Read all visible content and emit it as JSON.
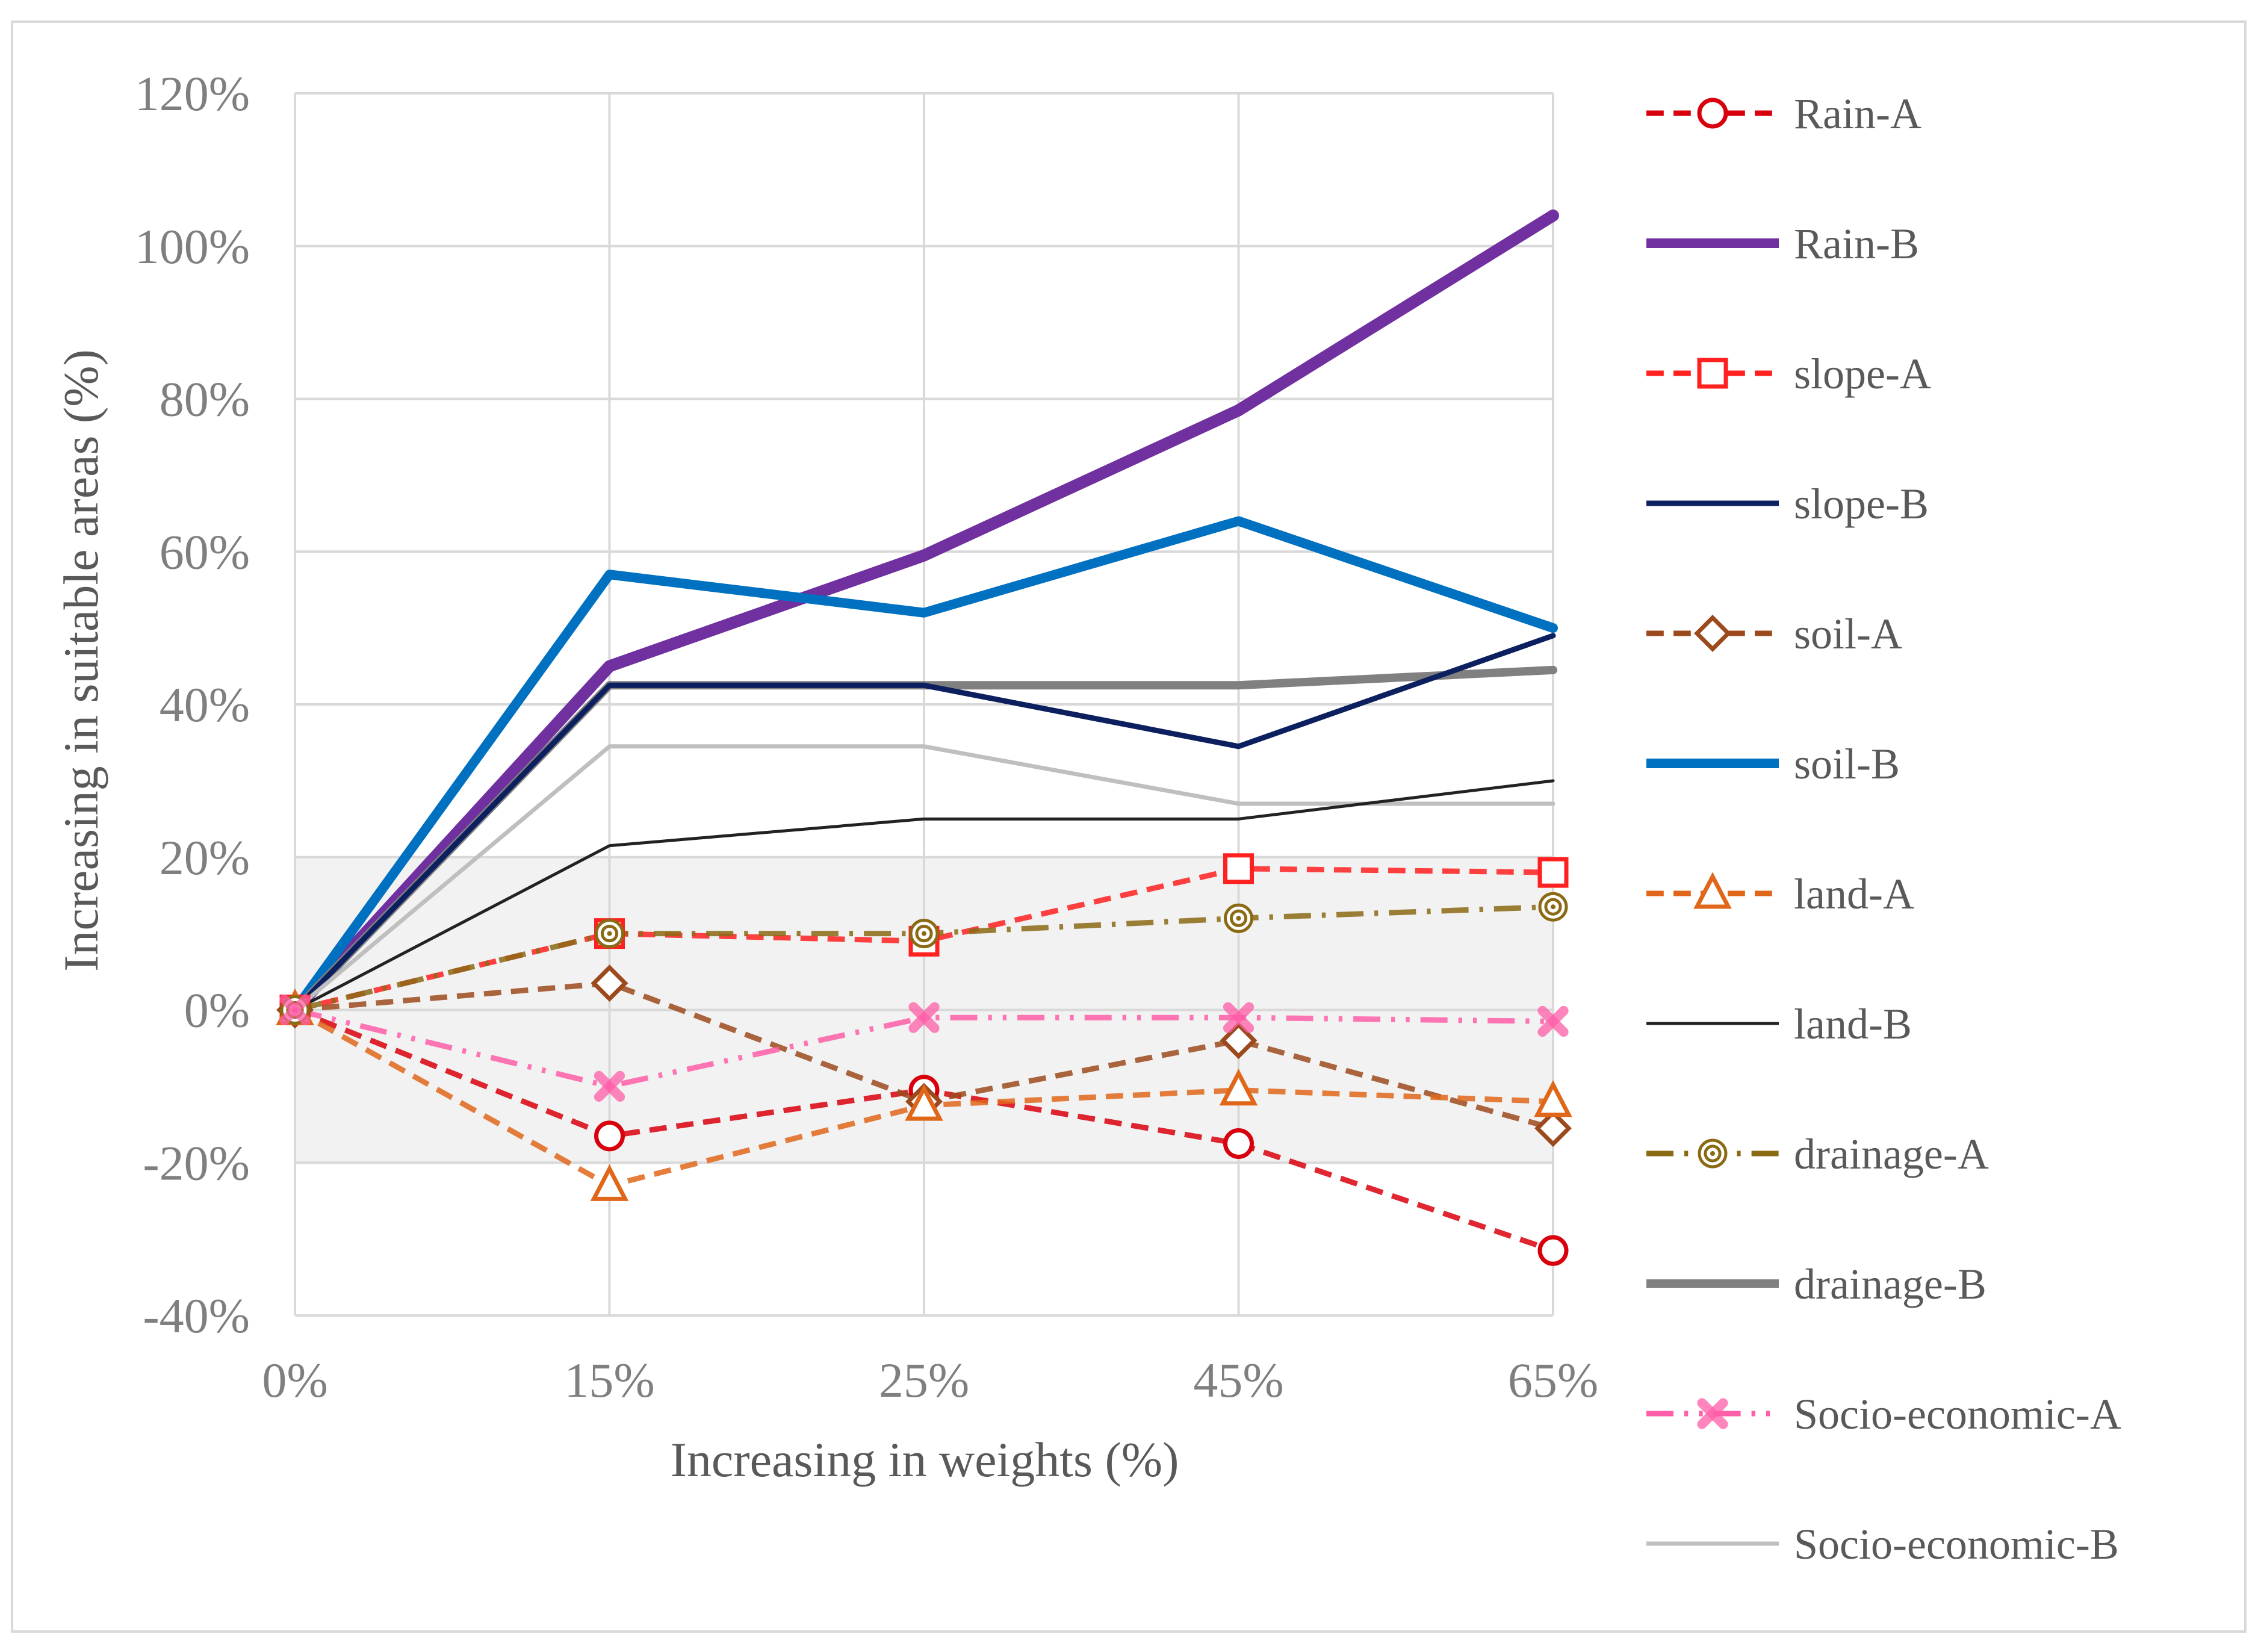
{
  "chart_data": {
    "type": "line",
    "title": "",
    "xlabel": "Increasing in weights (%)",
    "ylabel": "Increasing in suitable areas (%)",
    "categories": [
      "0%",
      "15%",
      "25%",
      "45%",
      "65%"
    ],
    "y_ticks": [
      "-40%",
      "-20%",
      "0%",
      "20%",
      "40%",
      "60%",
      "80%",
      "100%",
      "120%"
    ],
    "ylim": [
      -40,
      120
    ],
    "grid": true,
    "legend_position": "right",
    "shaded_band": {
      "from": -20,
      "to": 20,
      "color": "#f2f2f2"
    },
    "series": [
      {
        "name": "Rain-A",
        "values": [
          0,
          -16.5,
          -10.5,
          -17.5,
          -31.5
        ],
        "color": "#d9000d",
        "dash": "dash",
        "width": 9,
        "marker": "circle"
      },
      {
        "name": "Rain-B",
        "values": [
          0,
          45,
          59.5,
          78.5,
          104
        ],
        "color": "#7030a0",
        "dash": "solid",
        "width": 20,
        "marker": "none"
      },
      {
        "name": "slope-A",
        "values": [
          0,
          10,
          9,
          18.5,
          18
        ],
        "color": "#ff2020",
        "dash": "dash",
        "width": 9,
        "marker": "square"
      },
      {
        "name": "slope-B",
        "values": [
          0,
          42.5,
          42.5,
          34.5,
          49
        ],
        "color": "#0c1f5f",
        "dash": "solid",
        "width": 9,
        "marker": "none"
      },
      {
        "name": "soil-A",
        "values": [
          0,
          3.5,
          -12,
          -4,
          -15.5
        ],
        "color": "#9c4a1d",
        "dash": "dash",
        "width": 9,
        "marker": "diamond"
      },
      {
        "name": "soil-B",
        "values": [
          0,
          57,
          52,
          64,
          50
        ],
        "color": "#0070c0",
        "dash": "solid",
        "width": 16,
        "marker": "none"
      },
      {
        "name": "land-A",
        "values": [
          0,
          -23,
          -12.5,
          -10.5,
          -12
        ],
        "color": "#e0671a",
        "dash": "dash",
        "width": 9,
        "marker": "triangle"
      },
      {
        "name": "land-B",
        "values": [
          0,
          21.5,
          25,
          25,
          30
        ],
        "color": "#222222",
        "dash": "solid",
        "width": 5,
        "marker": "none"
      },
      {
        "name": "drainage-A",
        "values": [
          0,
          10,
          10,
          12,
          13.5
        ],
        "color": "#8b6a14",
        "dash": "dashdot",
        "width": 9,
        "marker": "doublecircle"
      },
      {
        "name": "drainage-B",
        "values": [
          0,
          42.5,
          42.5,
          42.5,
          44.5
        ],
        "color": "#808080",
        "dash": "solid",
        "width": 14,
        "marker": "none"
      },
      {
        "name": "Socio-economic-A",
        "values": [
          0,
          -10,
          -1,
          -1,
          -1.5
        ],
        "color": "#ff5ea8",
        "dash": "dashdotdot",
        "width": 9,
        "marker": "x"
      },
      {
        "name": "Socio-economic-B",
        "values": [
          0,
          34.5,
          34.5,
          27,
          27
        ],
        "color": "#bfbfbf",
        "dash": "solid",
        "width": 7,
        "marker": "none"
      }
    ]
  }
}
